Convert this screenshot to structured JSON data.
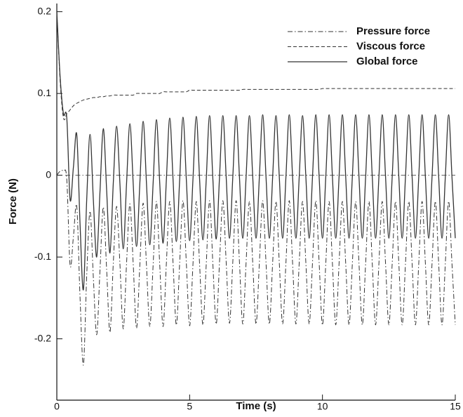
{
  "chart_data": {
    "type": "line",
    "x_label": "Time (s)",
    "y_label": "Force (N)",
    "xlim": [
      0,
      15
    ],
    "xticks": [
      0,
      5,
      10,
      15
    ],
    "ylim": [
      -0.275,
      0.21
    ],
    "yticks": [
      0.2,
      0.1,
      0,
      -0.1,
      -0.2
    ],
    "legend": "upper right",
    "x": [
      0,
      0.125,
      0.25,
      0.375,
      0.5,
      0.625,
      0.75,
      0.875,
      1,
      1.125,
      1.25,
      1.375,
      1.5,
      1.625,
      1.75,
      1.875,
      2,
      2.125,
      2.25,
      2.375,
      2.5,
      2.625,
      2.75,
      2.875,
      3,
      3.125,
      3.25,
      3.375,
      3.5,
      3.625,
      3.75,
      3.875,
      4,
      4.125,
      4.25,
      4.375,
      4.5,
      4.625,
      4.75,
      4.875,
      5,
      5.125,
      5.25,
      5.375,
      5.5,
      5.625,
      5.75,
      5.875,
      6,
      6.125,
      6.25,
      6.375,
      6.5,
      6.625,
      6.75,
      6.875,
      7,
      7.125,
      7.25,
      7.375,
      7.5,
      7.625,
      7.75,
      7.875,
      8,
      8.125,
      8.25,
      8.375,
      8.5,
      8.625,
      8.75,
      8.875,
      9,
      9.125,
      9.25,
      9.375,
      9.5,
      9.625,
      9.75,
      9.875,
      10,
      10.125,
      10.25,
      10.375,
      10.5,
      10.625,
      10.75,
      10.875,
      11,
      11.125,
      11.25,
      11.375,
      11.5,
      11.625,
      11.75,
      11.875,
      12,
      12.125,
      12.25,
      12.375,
      12.5,
      12.625,
      12.75,
      12.875,
      13,
      13.125,
      13.25,
      13.375,
      13.5,
      13.625,
      13.75,
      13.875,
      14,
      14.125,
      14.25,
      14.375,
      14.5,
      14.625,
      14.75,
      14.875,
      15
    ],
    "series": [
      {
        "name": "Pressure force",
        "color": "#333333",
        "style": "dashdot",
        "values": [
          0,
          0.005,
          0.005,
          -0.005,
          -0.11,
          -0.075,
          -0.038,
          -0.15,
          -0.232,
          -0.123,
          -0.044,
          -0.125,
          -0.195,
          -0.116,
          -0.039,
          -0.115,
          -0.192,
          -0.108,
          -0.038,
          -0.108,
          -0.188,
          -0.108,
          -0.035,
          -0.108,
          -0.187,
          -0.11,
          -0.034,
          -0.11,
          -0.185,
          -0.11,
          -0.032,
          -0.11,
          -0.185,
          -0.107,
          -0.032,
          -0.107,
          -0.183,
          -0.107,
          -0.031,
          -0.107,
          -0.184,
          -0.109,
          -0.032,
          -0.109,
          -0.183,
          -0.109,
          -0.031,
          -0.109,
          -0.182,
          -0.106,
          -0.031,
          -0.106,
          -0.181,
          -0.106,
          -0.031,
          -0.106,
          -0.182,
          -0.107,
          -0.032,
          -0.107,
          -0.182,
          -0.107,
          -0.031,
          -0.107,
          -0.182,
          -0.107,
          -0.032,
          -0.107,
          -0.182,
          -0.107,
          -0.031,
          -0.107,
          -0.182,
          -0.107,
          -0.032,
          -0.107,
          -0.182,
          -0.107,
          -0.031,
          -0.107,
          -0.183,
          -0.108,
          -0.032,
          -0.108,
          -0.183,
          -0.108,
          -0.032,
          -0.108,
          -0.183,
          -0.108,
          -0.032,
          -0.108,
          -0.183,
          -0.108,
          -0.032,
          -0.108,
          -0.183,
          -0.108,
          -0.032,
          -0.108,
          -0.183,
          -0.108,
          -0.032,
          -0.108,
          -0.183,
          -0.108,
          -0.032,
          -0.108,
          -0.183,
          -0.108,
          -0.032,
          -0.108,
          -0.183,
          -0.108,
          -0.032,
          -0.108,
          -0.183,
          -0.108,
          -0.032,
          -0.108,
          -0.183
        ]
      },
      {
        "name": "Viscous force",
        "color": "#333333",
        "style": "dashed",
        "values": [
          0.2,
          0.115,
          0.07,
          0.075,
          0.08,
          0.085,
          0.088,
          0.09,
          0.092,
          0.093,
          0.094,
          0.095,
          0.095,
          0.096,
          0.096,
          0.097,
          0.097,
          0.098,
          0.098,
          0.098,
          0.098,
          0.098,
          0.098,
          0.098,
          0.1,
          0.1,
          0.1,
          0.1,
          0.1,
          0.1,
          0.1,
          0.1,
          0.102,
          0.102,
          0.102,
          0.102,
          0.102,
          0.102,
          0.102,
          0.102,
          0.104,
          0.104,
          0.104,
          0.104,
          0.104,
          0.104,
          0.104,
          0.104,
          0.104,
          0.104,
          0.104,
          0.104,
          0.104,
          0.104,
          0.104,
          0.104,
          0.105,
          0.105,
          0.105,
          0.105,
          0.105,
          0.105,
          0.105,
          0.105,
          0.105,
          0.105,
          0.105,
          0.105,
          0.105,
          0.105,
          0.105,
          0.105,
          0.105,
          0.105,
          0.105,
          0.105,
          0.105,
          0.105,
          0.105,
          0.105,
          0.106,
          0.106,
          0.106,
          0.106,
          0.106,
          0.106,
          0.106,
          0.106,
          0.106,
          0.106,
          0.106,
          0.106,
          0.106,
          0.106,
          0.106,
          0.106,
          0.106,
          0.106,
          0.106,
          0.106,
          0.106,
          0.106,
          0.106,
          0.106,
          0.106,
          0.106,
          0.106,
          0.106,
          0.106,
          0.106,
          0.106,
          0.106,
          0.106,
          0.106,
          0.106,
          0.106,
          0.106,
          0.106,
          0.106,
          0.106,
          0.106
        ]
      },
      {
        "name": "Global force",
        "color": "#333333",
        "style": "solid",
        "values": [
          0.2,
          0.12,
          0.075,
          0.07,
          -0.03,
          0.01,
          0.05,
          -0.06,
          -0.14,
          -0.03,
          0.05,
          -0.03,
          -0.1,
          -0.02,
          0.057,
          -0.018,
          -0.095,
          -0.01,
          0.06,
          -0.01,
          -0.09,
          -0.01,
          0.063,
          -0.01,
          -0.087,
          -0.01,
          0.066,
          -0.01,
          -0.085,
          -0.01,
          0.068,
          -0.01,
          -0.083,
          -0.005,
          0.07,
          -0.005,
          -0.081,
          -0.005,
          0.071,
          -0.005,
          -0.08,
          -0.005,
          0.072,
          -0.005,
          -0.079,
          -0.005,
          0.073,
          -0.005,
          -0.078,
          -0.002,
          0.073,
          -0.002,
          -0.077,
          -0.002,
          0.073,
          -0.002,
          -0.077,
          -0.002,
          0.073,
          -0.002,
          -0.077,
          -0.002,
          0.074,
          -0.002,
          -0.077,
          -0.002,
          0.073,
          -0.002,
          -0.077,
          -0.002,
          0.074,
          -0.002,
          -0.077,
          -0.002,
          0.073,
          -0.002,
          -0.077,
          -0.002,
          0.074,
          -0.002,
          -0.077,
          -0.002,
          0.074,
          -0.002,
          -0.077,
          -0.002,
          0.074,
          -0.002,
          -0.077,
          -0.002,
          0.074,
          -0.002,
          -0.077,
          -0.002,
          0.074,
          -0.002,
          -0.077,
          -0.002,
          0.074,
          -0.002,
          -0.077,
          -0.002,
          0.074,
          -0.002,
          -0.077,
          -0.002,
          0.074,
          -0.002,
          -0.077,
          -0.002,
          0.074,
          -0.002,
          -0.077,
          -0.002,
          0.074,
          -0.002,
          -0.077,
          -0.002,
          0.074,
          -0.002,
          -0.077
        ]
      }
    ]
  }
}
